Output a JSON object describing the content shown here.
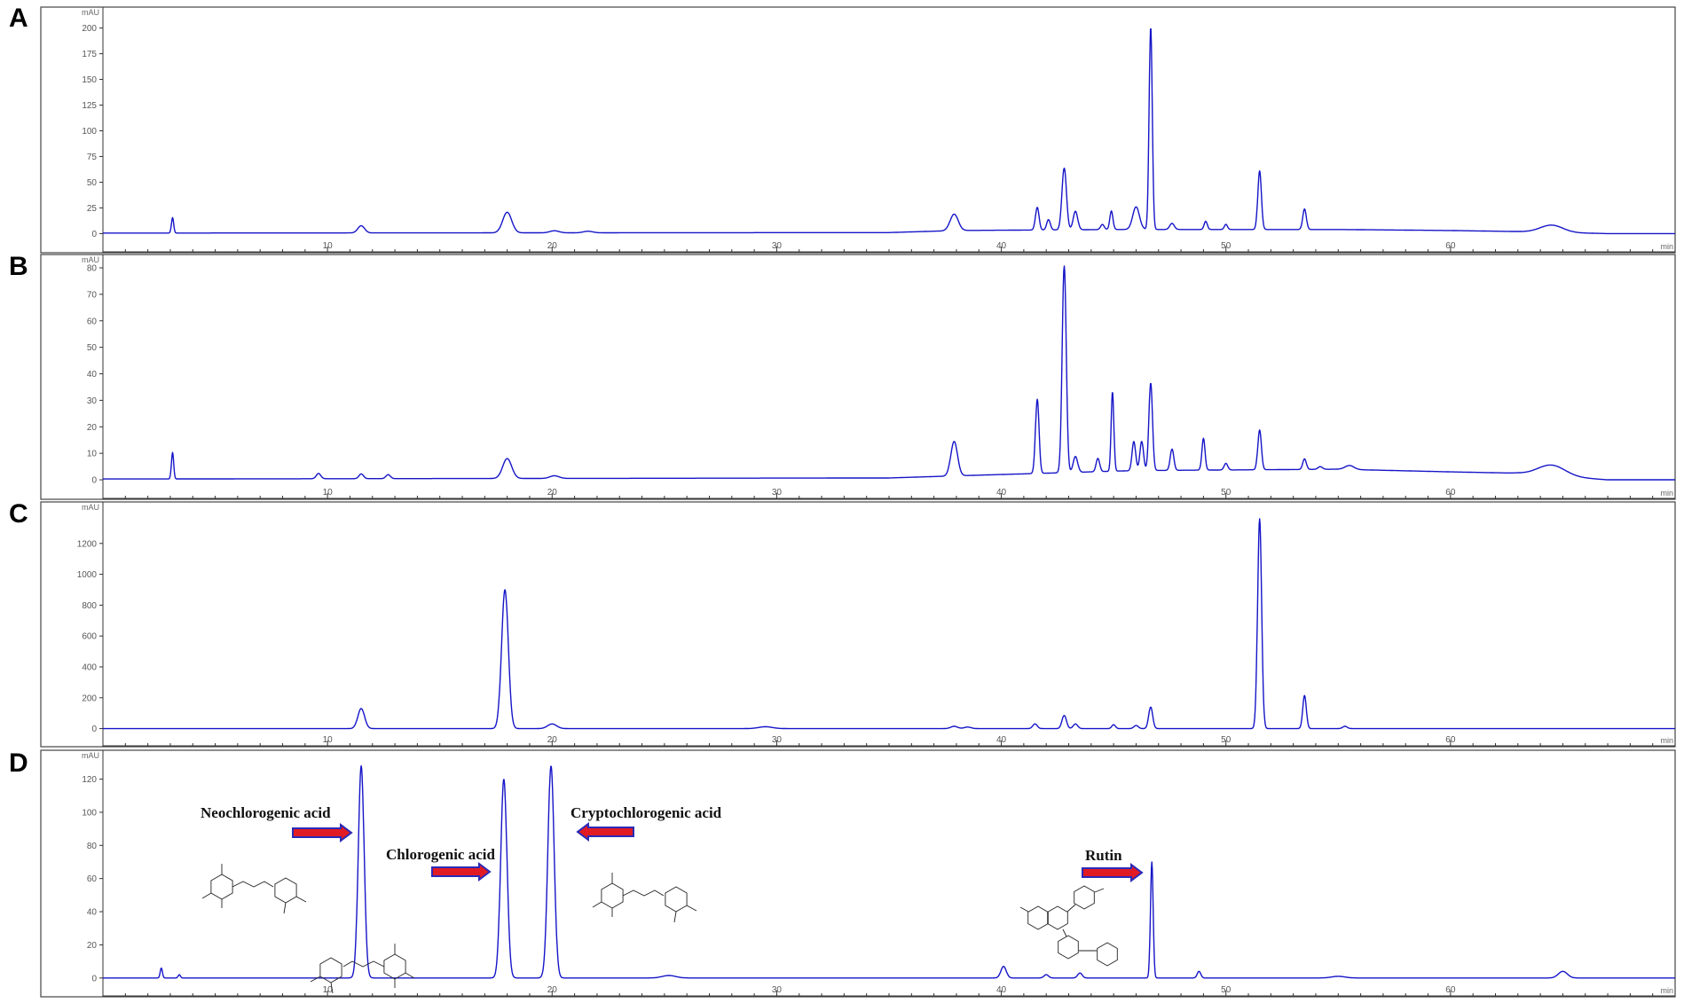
{
  "chart_data": [
    {
      "type": "line",
      "panel": "A",
      "y_unit": "mAU",
      "x_unit": "min",
      "xlim": [
        0,
        70
      ],
      "ylim": [
        -10,
        210
      ],
      "yticks": [
        0,
        25,
        50,
        75,
        100,
        125,
        150,
        175,
        200
      ],
      "xticks": [
        10,
        20,
        30,
        40,
        50,
        60
      ],
      "baseline": [
        [
          0,
          0.5
        ],
        [
          35,
          1
        ],
        [
          38,
          3
        ],
        [
          45,
          4
        ],
        [
          55,
          4
        ],
        [
          60,
          3
        ],
        [
          63,
          2
        ],
        [
          67,
          0
        ],
        [
          70,
          0
        ]
      ],
      "peaks": [
        {
          "t": 3.1,
          "h": 15,
          "w": 0.05
        },
        {
          "t": 11.5,
          "h": 7,
          "w": 0.15
        },
        {
          "t": 18.0,
          "h": 20,
          "w": 0.2
        },
        {
          "t": 20.1,
          "h": 2,
          "w": 0.2
        },
        {
          "t": 21.6,
          "h": 1.5,
          "w": 0.2
        },
        {
          "t": 37.9,
          "h": 16,
          "w": 0.18
        },
        {
          "t": 41.6,
          "h": 22,
          "w": 0.08
        },
        {
          "t": 42.1,
          "h": 10,
          "w": 0.08
        },
        {
          "t": 42.8,
          "h": 60,
          "w": 0.1
        },
        {
          "t": 43.3,
          "h": 18,
          "w": 0.1
        },
        {
          "t": 44.5,
          "h": 5,
          "w": 0.08
        },
        {
          "t": 44.9,
          "h": 18,
          "w": 0.07
        },
        {
          "t": 46.0,
          "h": 22,
          "w": 0.15
        },
        {
          "t": 46.65,
          "h": 197,
          "w": 0.07
        },
        {
          "t": 47.6,
          "h": 6,
          "w": 0.1
        },
        {
          "t": 49.1,
          "h": 8,
          "w": 0.07
        },
        {
          "t": 50.0,
          "h": 5,
          "w": 0.07
        },
        {
          "t": 51.5,
          "h": 57,
          "w": 0.08
        },
        {
          "t": 53.5,
          "h": 20,
          "w": 0.08
        },
        {
          "t": 64.5,
          "h": 7,
          "w": 0.5
        }
      ]
    },
    {
      "type": "line",
      "panel": "B",
      "y_unit": "mAU",
      "x_unit": "min",
      "xlim": [
        0,
        70
      ],
      "ylim": [
        -4,
        81
      ],
      "yticks": [
        0,
        10,
        20,
        30,
        40,
        50,
        60,
        70,
        80
      ],
      "xticks": [
        10,
        20,
        30,
        40,
        50,
        60
      ],
      "baseline": [
        [
          0,
          0.3
        ],
        [
          35,
          0.7
        ],
        [
          38,
          1.5
        ],
        [
          42,
          2.5
        ],
        [
          46,
          3.5
        ],
        [
          55,
          4
        ],
        [
          60,
          3
        ],
        [
          63,
          2.5
        ],
        [
          67,
          0
        ],
        [
          70,
          0
        ]
      ],
      "peaks": [
        {
          "t": 3.1,
          "h": 10,
          "w": 0.05
        },
        {
          "t": 9.6,
          "h": 2,
          "w": 0.1
        },
        {
          "t": 11.5,
          "h": 1.8,
          "w": 0.1
        },
        {
          "t": 12.7,
          "h": 1.5,
          "w": 0.1
        },
        {
          "t": 18.0,
          "h": 7.5,
          "w": 0.2
        },
        {
          "t": 20.1,
          "h": 1,
          "w": 0.2
        },
        {
          "t": 37.9,
          "h": 13,
          "w": 0.15
        },
        {
          "t": 41.6,
          "h": 28,
          "w": 0.08
        },
        {
          "t": 42.8,
          "h": 78,
          "w": 0.09
        },
        {
          "t": 43.3,
          "h": 6,
          "w": 0.1
        },
        {
          "t": 44.3,
          "h": 5,
          "w": 0.08
        },
        {
          "t": 44.95,
          "h": 30,
          "w": 0.06
        },
        {
          "t": 45.9,
          "h": 11,
          "w": 0.08
        },
        {
          "t": 46.25,
          "h": 11,
          "w": 0.08
        },
        {
          "t": 46.65,
          "h": 33,
          "w": 0.08
        },
        {
          "t": 47.6,
          "h": 8,
          "w": 0.08
        },
        {
          "t": 49.0,
          "h": 12,
          "w": 0.07
        },
        {
          "t": 50.0,
          "h": 2.5,
          "w": 0.08
        },
        {
          "t": 51.5,
          "h": 15,
          "w": 0.08
        },
        {
          "t": 53.5,
          "h": 4,
          "w": 0.08
        },
        {
          "t": 54.2,
          "h": 1,
          "w": 0.1
        },
        {
          "t": 55.5,
          "h": 1.5,
          "w": 0.2
        },
        {
          "t": 64.5,
          "h": 4,
          "w": 0.6
        }
      ]
    },
    {
      "type": "line",
      "panel": "C",
      "y_unit": "mAU",
      "x_unit": "min",
      "xlim": [
        0,
        70
      ],
      "ylim": [
        -60,
        1400
      ],
      "yticks": [
        0,
        200,
        400,
        600,
        800,
        1000,
        1200
      ],
      "xticks": [
        10,
        20,
        30,
        40,
        50,
        60
      ],
      "baseline": [
        [
          0,
          0
        ],
        [
          70,
          0
        ]
      ],
      "peaks": [
        {
          "t": 11.5,
          "h": 130,
          "w": 0.15
        },
        {
          "t": 17.9,
          "h": 900,
          "w": 0.15
        },
        {
          "t": 20.0,
          "h": 30,
          "w": 0.2
        },
        {
          "t": 29.5,
          "h": 12,
          "w": 0.3
        },
        {
          "t": 37.9,
          "h": 15,
          "w": 0.15
        },
        {
          "t": 38.5,
          "h": 10,
          "w": 0.15
        },
        {
          "t": 41.5,
          "h": 30,
          "w": 0.1
        },
        {
          "t": 42.8,
          "h": 85,
          "w": 0.1
        },
        {
          "t": 43.3,
          "h": 30,
          "w": 0.1
        },
        {
          "t": 45.0,
          "h": 25,
          "w": 0.08
        },
        {
          "t": 46.0,
          "h": 20,
          "w": 0.1
        },
        {
          "t": 46.65,
          "h": 140,
          "w": 0.09
        },
        {
          "t": 51.5,
          "h": 1360,
          "w": 0.09
        },
        {
          "t": 53.5,
          "h": 215,
          "w": 0.08
        },
        {
          "t": 55.3,
          "h": 15,
          "w": 0.1
        }
      ]
    },
    {
      "type": "line",
      "panel": "D",
      "y_unit": "mAU",
      "x_unit": "min",
      "xlim": [
        0,
        70
      ],
      "ylim": [
        -6,
        131
      ],
      "yticks": [
        0,
        20,
        40,
        60,
        80,
        100,
        120
      ],
      "xticks": [
        10,
        20,
        30,
        40,
        50,
        60
      ],
      "baseline": [
        [
          0,
          0
        ],
        [
          70,
          0
        ]
      ],
      "peaks": [
        {
          "t": 2.6,
          "h": 6,
          "w": 0.05
        },
        {
          "t": 3.4,
          "h": 2,
          "w": 0.05
        },
        {
          "t": 11.5,
          "h": 128,
          "w": 0.13
        },
        {
          "t": 17.85,
          "h": 120,
          "w": 0.14
        },
        {
          "t": 19.95,
          "h": 128,
          "w": 0.14
        },
        {
          "t": 25.2,
          "h": 1.5,
          "w": 0.3
        },
        {
          "t": 40.1,
          "h": 7,
          "w": 0.12
        },
        {
          "t": 42.0,
          "h": 2,
          "w": 0.1
        },
        {
          "t": 43.5,
          "h": 3,
          "w": 0.1
        },
        {
          "t": 46.7,
          "h": 70,
          "w": 0.06
        },
        {
          "t": 48.8,
          "h": 4,
          "w": 0.08
        },
        {
          "t": 55.0,
          "h": 1,
          "w": 0.3
        },
        {
          "t": 65.0,
          "h": 4,
          "w": 0.2
        }
      ],
      "annotations": [
        {
          "text": "Neochlorogenic acid",
          "arrow": "right",
          "peak_t": 11.5
        },
        {
          "text": "Chlorogenic acid",
          "arrow": "right",
          "peak_t": 17.85
        },
        {
          "text": "Cryptochlorogenic acid",
          "arrow": "left",
          "peak_t": 19.95
        },
        {
          "text": "Rutin",
          "arrow": "right",
          "peak_t": 46.7
        }
      ]
    }
  ],
  "colors": {
    "trace": "#1515c8",
    "arrow_fill": "#e01b24",
    "arrow_outline": "#2a2ab8"
  }
}
